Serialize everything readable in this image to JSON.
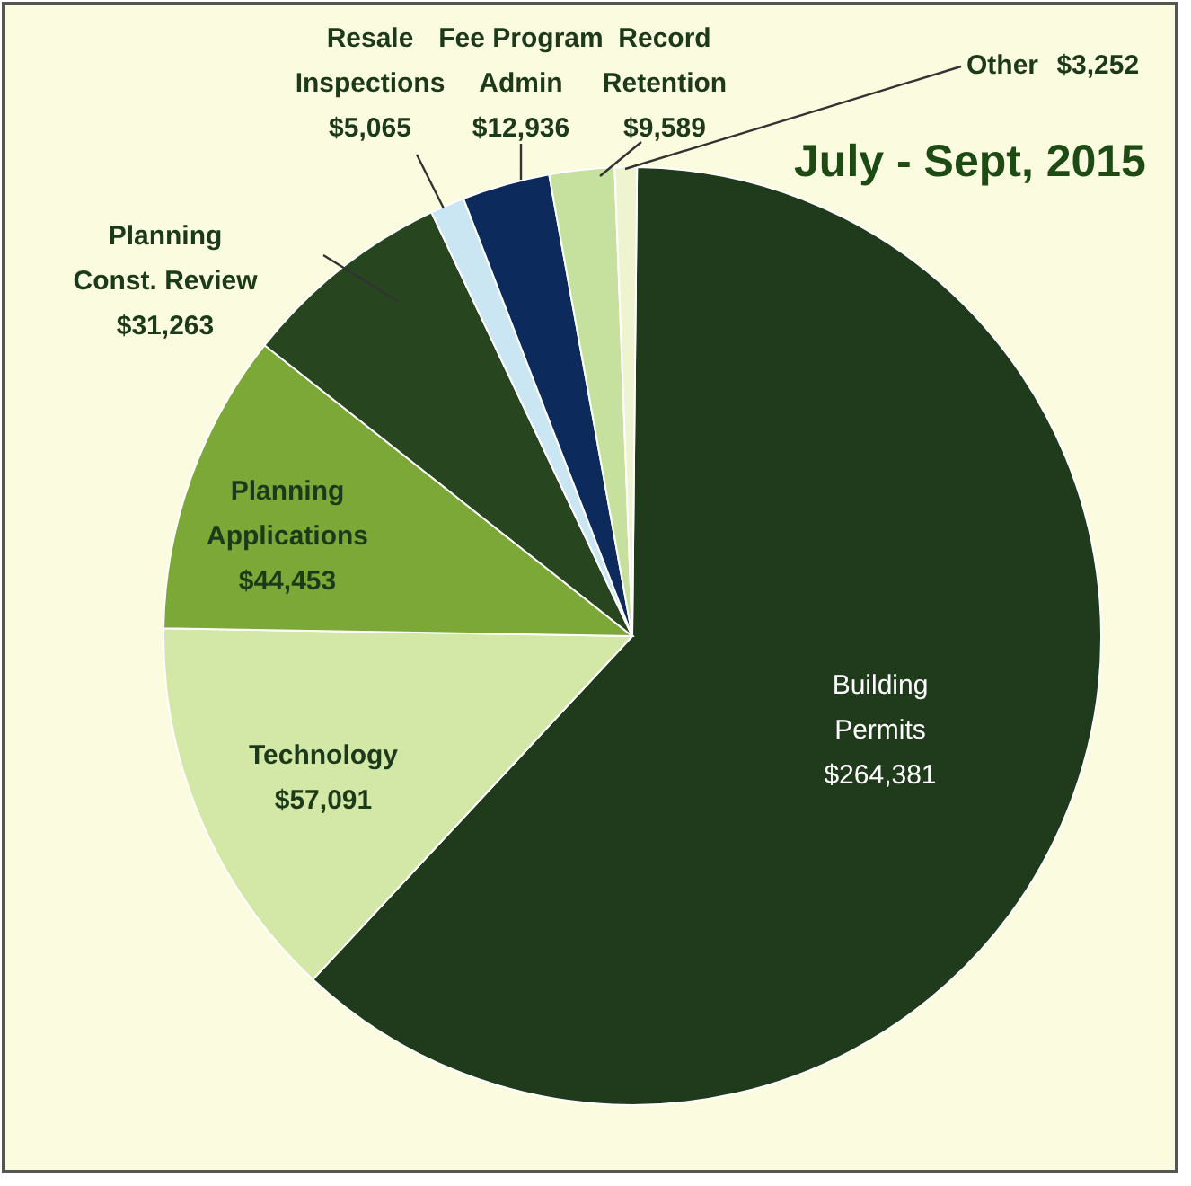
{
  "chart_data": {
    "type": "pie",
    "title": "July - Sept, 2015",
    "categories": [
      "Building Permits",
      "Technology",
      "Planning Applications",
      "Planning Const. Review",
      "Resale Inspections",
      "Fee Program Admin",
      "Record Retention",
      "Other"
    ],
    "values": [
      264381,
      57091,
      44453,
      31263,
      5065,
      12936,
      9589,
      3252
    ],
    "value_labels": [
      "$264,381",
      "$57,091",
      "$44,453",
      "$31,263",
      "$5,065",
      "$12,936",
      "$9,589",
      "$3,252"
    ],
    "colors": [
      "#1f3b1c",
      "#d3e8a6",
      "#7ba837",
      "#27461f",
      "#c9e6f2",
      "#0c2a5c",
      "#c6e09e",
      "#eef4cf"
    ]
  }
}
